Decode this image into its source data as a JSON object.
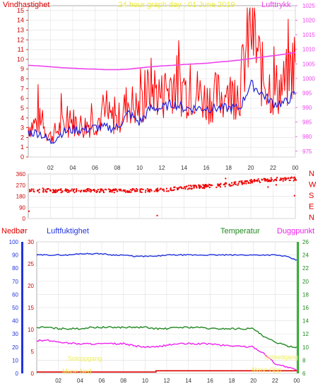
{
  "header": {
    "left_label": "Vindhastighet",
    "title": "24 hour graph day : 01 June 2019",
    "right_label": "Lufttrykk"
  },
  "panel3": {
    "nedbor_label": "Nedbør",
    "humidity_label": "Luftfuktighet",
    "temperature_label": "Temperatur",
    "dewpoint_label": "Duggpunkt",
    "sunrise_label": "Soloppgang",
    "moonrise_label": "Mane Ned",
    "sunset_label": "Solnedgang",
    "moonset_label": "Mane Opp"
  },
  "x_ticks": [
    "02",
    "04",
    "06",
    "08",
    "10",
    "12",
    "14",
    "16",
    "18",
    "20",
    "22",
    "00"
  ],
  "compass_labels": [
    "N",
    "W",
    "S",
    "E",
    "N"
  ],
  "colors": {
    "wind": "#ff0000",
    "gust": "#ee0000",
    "avg_wind": "#2222dd",
    "pressure": "#ee44ee",
    "direction": "#ee0000",
    "humidity": "#2233dd",
    "temperature": "#228822",
    "dewpoint": "#ee22ee",
    "rain": "#dd0000"
  },
  "chart_data": [
    {
      "type": "line",
      "title": "24 hour graph day : 01 June 2019",
      "ylabel": "Vindhastighet",
      "ylim": [
        0,
        15.5
      ],
      "y_ticks": [
        "0",
        "1",
        "2",
        "3",
        "4",
        "5",
        "6",
        "7",
        "8",
        "9",
        "10",
        "11",
        "12",
        "13",
        "14",
        "15"
      ],
      "y2label": "Lufttrykk",
      "y2lim": [
        973,
        1025
      ],
      "y2_ticks": [
        "975",
        "980",
        "985",
        "990",
        "995",
        "1000",
        "1005",
        "1010",
        "1015",
        "1020",
        "1025"
      ],
      "x": [
        0,
        1,
        2,
        3,
        4,
        5,
        6,
        7,
        8,
        9,
        10,
        11,
        12,
        13,
        14,
        15,
        16,
        17,
        18,
        19,
        20,
        21,
        22,
        23,
        24
      ],
      "series": [
        {
          "name": "Vindhastighet",
          "values": [
            3,
            3.5,
            2,
            3,
            3.5,
            3,
            3.5,
            4,
            3.5,
            5.5,
            4.5,
            7,
            6,
            7.5,
            6.5,
            6.5,
            5.5,
            6,
            6,
            6.5,
            13,
            8,
            6.5,
            7,
            9.5
          ]
        },
        {
          "name": "avg",
          "values": [
            2.5,
            2.5,
            1.5,
            2.5,
            2.8,
            2.8,
            3,
            3,
            3,
            4.5,
            3.5,
            5,
            5,
            5.5,
            5,
            5,
            5,
            5,
            5,
            5,
            7.5,
            6.5,
            5.5,
            5.5,
            6.5
          ]
        },
        {
          "name": "Lufttrykk",
          "values": [
            1004.5,
            1004.3,
            1004,
            1003.7,
            1003.5,
            1003.3,
            1003.2,
            1003,
            1003,
            1003.2,
            1003.6,
            1004,
            1004.3,
            1004.5,
            1004.8,
            1005,
            1005.2,
            1005.6,
            1005.9,
            1006.3,
            1006.8,
            1007.3,
            1007.8,
            1008.3,
            1008.9
          ]
        }
      ]
    },
    {
      "type": "scatter",
      "ylabel": "Vindretning",
      "ylim": [
        0,
        360
      ],
      "y_ticks": [
        "0",
        "90",
        "180",
        "270",
        "360"
      ],
      "x": [
        0,
        2,
        4,
        6,
        8,
        10,
        12,
        14,
        16,
        18,
        20,
        22,
        24
      ],
      "values": [
        225,
        225,
        225,
        225,
        225,
        225,
        230,
        250,
        260,
        275,
        300,
        315,
        320
      ]
    },
    {
      "type": "line",
      "y_left_rain_ticks": [
        "0",
        "10",
        "20",
        "30",
        "40",
        "50",
        "60",
        "70",
        "80",
        "90",
        "100"
      ],
      "y_left_hum_ticks": [
        "0",
        "5",
        "10",
        "15",
        "20",
        "25",
        "30"
      ],
      "y_right_ticks": [
        "6",
        "8",
        "10",
        "12",
        "14",
        "16",
        "18",
        "20",
        "22",
        "24",
        "26"
      ],
      "x": [
        0,
        1,
        2,
        3,
        4,
        5,
        6,
        7,
        8,
        9,
        10,
        11,
        12,
        13,
        14,
        15,
        16,
        17,
        18,
        19,
        20,
        21,
        22,
        23,
        24
      ],
      "series": [
        {
          "name": "Luftfuktighet",
          "values": [
            90,
            90,
            90,
            90,
            91,
            91,
            91,
            90,
            90,
            89,
            89,
            89,
            90,
            90,
            90,
            90,
            90,
            90,
            90,
            90,
            90,
            90,
            90,
            89,
            86
          ]
        },
        {
          "name": "Temperatur",
          "values": [
            13,
            13,
            12.8,
            12.8,
            12.8,
            13,
            13,
            13,
            13,
            13,
            13,
            12.8,
            12.8,
            13,
            13,
            13,
            12.8,
            12.8,
            12.8,
            12.8,
            12.8,
            11.5,
            10.8,
            10.2,
            10
          ]
        },
        {
          "name": "Duggpunkt",
          "values": [
            11,
            11,
            10.8,
            10.6,
            10.5,
            10.5,
            10.5,
            10.5,
            10.5,
            10.2,
            10,
            10,
            10.3,
            10.5,
            10.5,
            10.5,
            10.5,
            10.3,
            10.2,
            10.1,
            10,
            9,
            7.5,
            7,
            6.5
          ]
        },
        {
          "name": "Nedbør",
          "values": [
            1,
            1,
            1,
            1,
            1,
            1,
            1,
            1,
            1,
            1,
            1,
            2,
            2,
            2,
            2,
            2,
            2,
            2,
            2,
            2,
            2,
            2,
            2,
            2,
            2
          ]
        }
      ]
    }
  ]
}
